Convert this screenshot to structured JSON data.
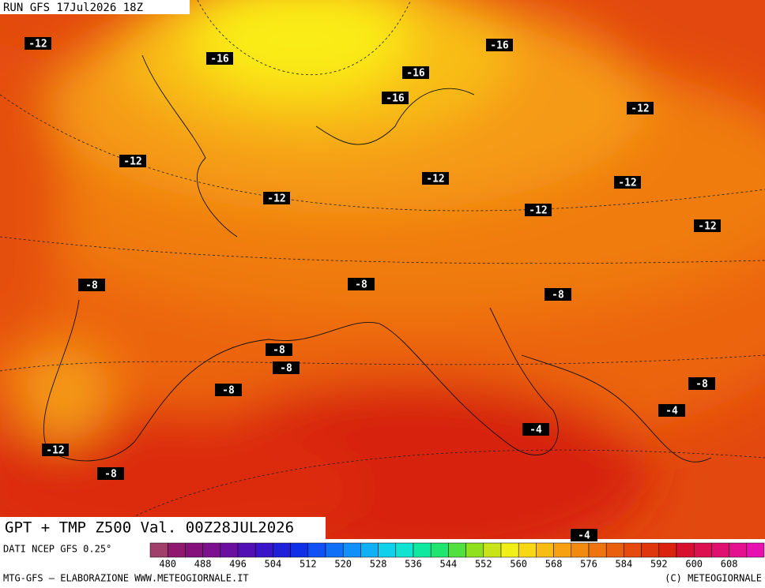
{
  "header": {
    "run": "RUN GFS 17Jul2026 18Z"
  },
  "map": {
    "labels": [
      "-12",
      "-16",
      "-16",
      "-16",
      "-16",
      "-12",
      "-12",
      "-12",
      "-12",
      "-12",
      "-12",
      "-12",
      "-8",
      "-8",
      "-8",
      "-8",
      "-8",
      "-8",
      "-8",
      "-4",
      "-4",
      "-12",
      "-8",
      "-4"
    ]
  },
  "title": "GPT + TMP Z500 Val. 00Z28JUL2026",
  "legend": {
    "source": "DATI NCEP GFS 0.25°",
    "ticks": [
      480,
      488,
      496,
      504,
      512,
      520,
      528,
      536,
      544,
      552,
      560,
      568,
      576,
      584,
      592,
      600,
      608
    ]
  },
  "footer": {
    "left": "MTG-GFS — ELABORAZIONE WWW.METEOGIORNALE.IT",
    "right": "(C) METEOGIORNALE"
  }
}
